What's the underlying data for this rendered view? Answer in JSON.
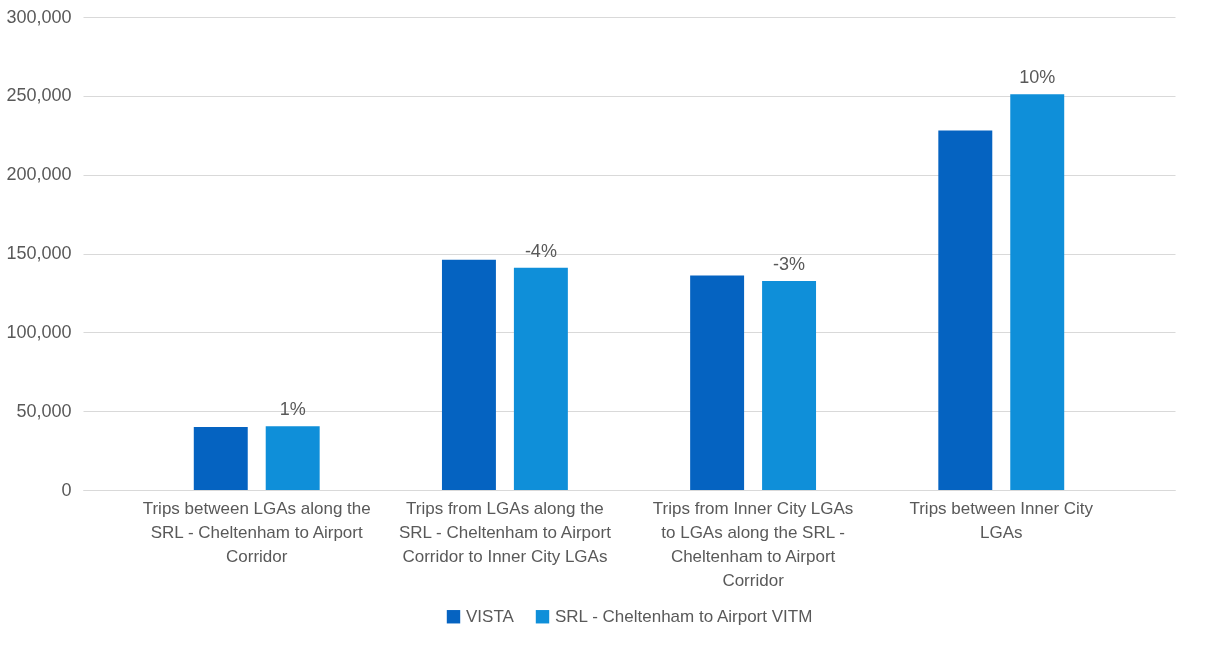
{
  "chart_data": {
    "type": "bar",
    "categories": [
      "Trips between LGAs along the SRL - Cheltenham to Airport Corridor",
      "Trips from LGAs along the SRL - Cheltenham to Airport Corridor to Inner City LGAs",
      "Trips from Inner City LGAs to LGAs along the SRL - Cheltenham to Airport Corridor",
      "Trips between Inner City LGAs"
    ],
    "series": [
      {
        "name": "VISTA",
        "color": "#0563c1",
        "values": [
          40000,
          146000,
          136000,
          228000
        ]
      },
      {
        "name": "SRL - Cheltenham to Airport VITM",
        "color": "#0f8fd9",
        "values": [
          40500,
          141000,
          132500,
          251000
        ]
      }
    ],
    "annotations": [
      "1%",
      "-4%",
      "-3%",
      "10%"
    ],
    "ylim": [
      0,
      300000
    ],
    "yticks": [
      {
        "value": 0,
        "label": "0"
      },
      {
        "value": 50000,
        "label": "50,000"
      },
      {
        "value": 100000,
        "label": "100,000"
      },
      {
        "value": 150000,
        "label": "150,000"
      },
      {
        "value": 200000,
        "label": "200,000"
      },
      {
        "value": 250000,
        "label": "250,000"
      },
      {
        "value": 300000,
        "label": "300,000"
      }
    ],
    "grid": "y",
    "legend": "bottom"
  }
}
